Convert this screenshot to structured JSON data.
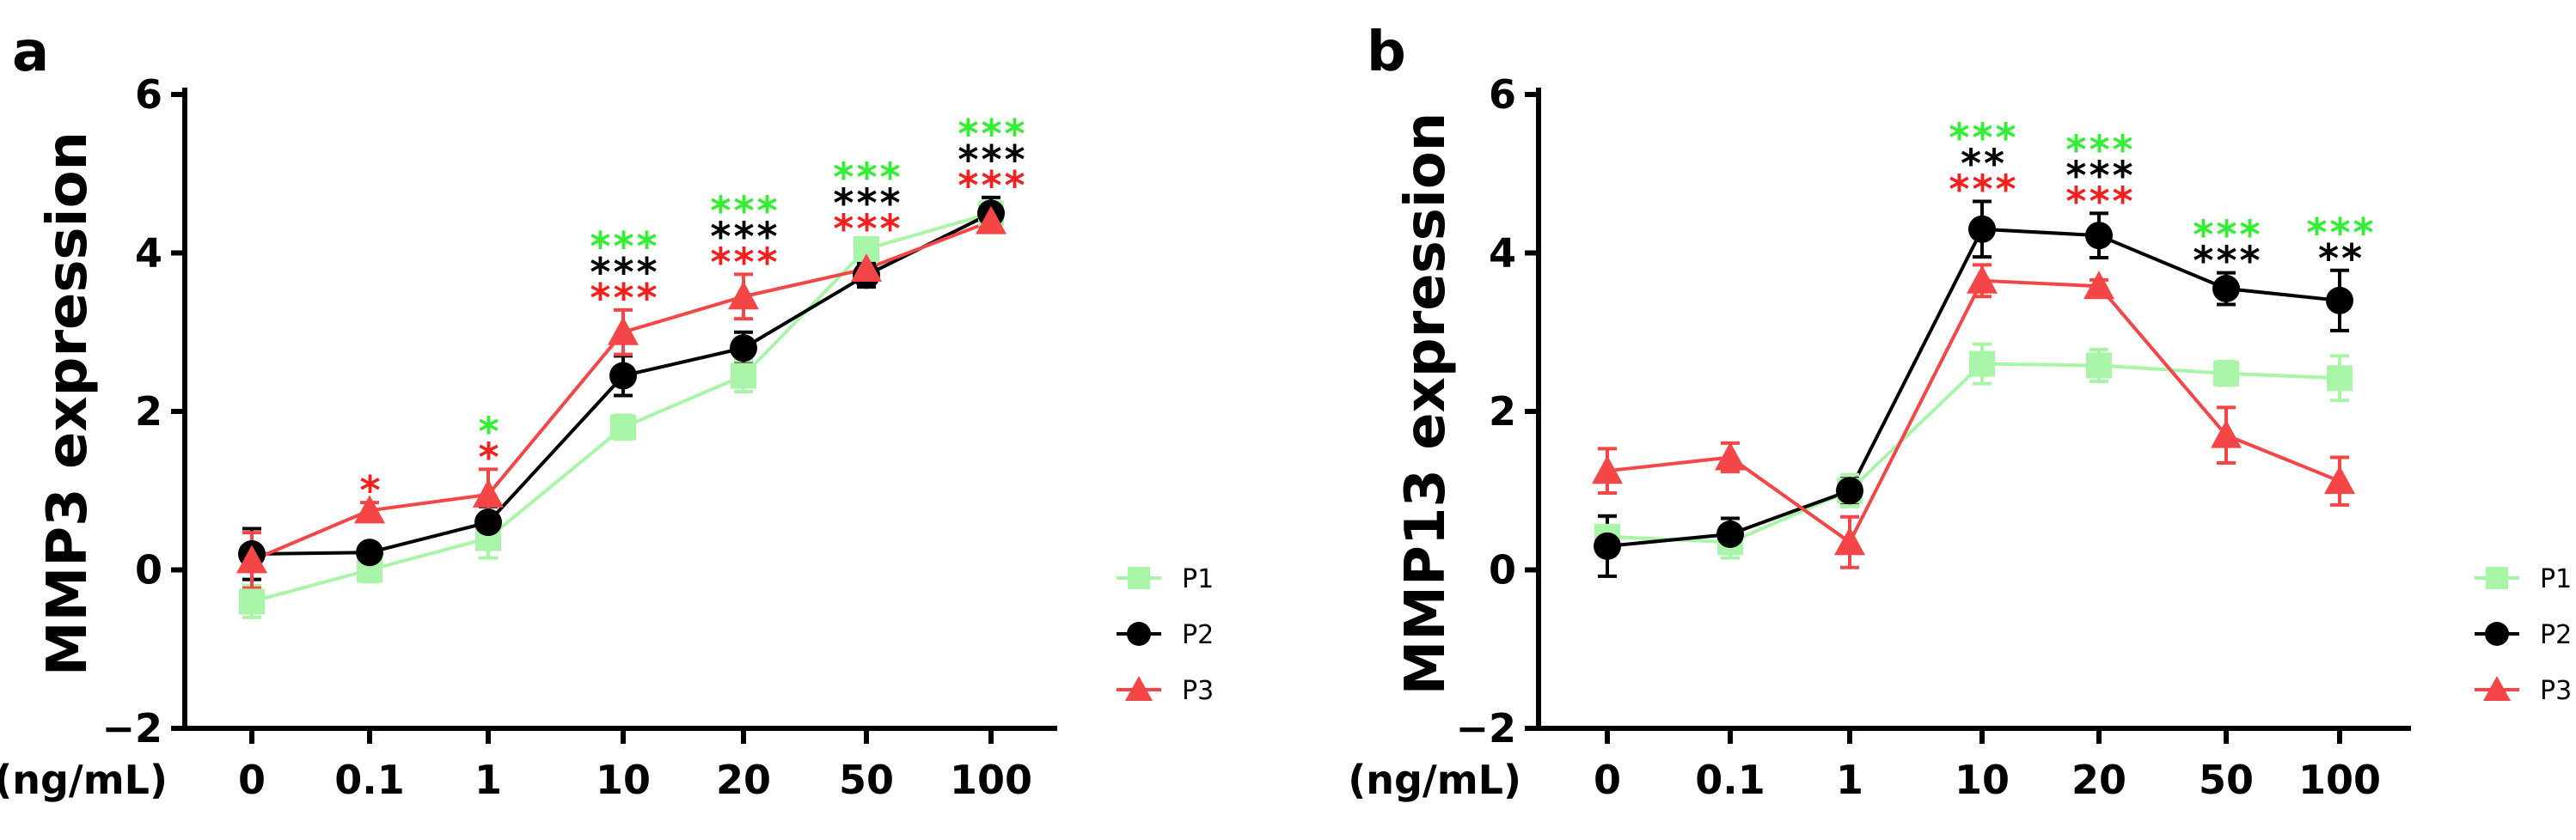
{
  "colors": {
    "P1": "#a8f5a8",
    "P2": "#000000",
    "P3": "#f44646",
    "star_green": "#33ee33",
    "star_black": "#000000",
    "star_red": "#f41f1f"
  },
  "chart_data": [
    {
      "type": "line",
      "panel": "a",
      "ylabel": "MMP3 expression",
      "xlabel": "(ng/mL)",
      "categories": [
        "0",
        "0.1",
        "1",
        "10",
        "20",
        "50",
        "100"
      ],
      "ylim": [
        -2,
        6
      ],
      "yticks": [
        "−2",
        "0",
        "2",
        "4",
        "6"
      ],
      "legend": [
        "P1",
        "P2",
        "P3"
      ],
      "legend_position": "right",
      "series": [
        {
          "name": "P1",
          "marker": "square",
          "values": [
            -0.4,
            0.0,
            0.4,
            1.8,
            2.45,
            4.05,
            4.5
          ],
          "errors": [
            0.2,
            0.15,
            0.25,
            0.15,
            0.2,
            0.1,
            0.15
          ]
        },
        {
          "name": "P2",
          "marker": "circle",
          "values": [
            0.2,
            0.22,
            0.6,
            2.45,
            2.8,
            3.72,
            4.5
          ],
          "errors": [
            0.32,
            0.08,
            0.2,
            0.25,
            0.2,
            0.15,
            0.2
          ]
        },
        {
          "name": "P3",
          "marker": "triangle",
          "values": [
            0.12,
            0.75,
            0.95,
            3.0,
            3.45,
            3.8,
            4.4
          ],
          "errors": [
            0.35,
            0.1,
            0.32,
            0.28,
            0.28,
            0.12,
            0.1
          ]
        }
      ],
      "annotations": [
        {
          "category": "0.1",
          "rows": [
            {
              "color": "red",
              "text": "*"
            }
          ]
        },
        {
          "category": "1",
          "rows": [
            {
              "color": "green",
              "text": "*"
            },
            {
              "color": "red",
              "text": "*"
            }
          ]
        },
        {
          "category": "10",
          "rows": [
            {
              "color": "green",
              "text": "***"
            },
            {
              "color": "black",
              "text": "***"
            },
            {
              "color": "red",
              "text": "***"
            }
          ]
        },
        {
          "category": "20",
          "rows": [
            {
              "color": "green",
              "text": "***"
            },
            {
              "color": "black",
              "text": "***"
            },
            {
              "color": "red",
              "text": "***"
            }
          ]
        },
        {
          "category": "50",
          "rows": [
            {
              "color": "green",
              "text": "***"
            },
            {
              "color": "black",
              "text": "***"
            },
            {
              "color": "red",
              "text": "***"
            }
          ]
        },
        {
          "category": "100",
          "rows": [
            {
              "color": "green",
              "text": "***"
            },
            {
              "color": "black",
              "text": "***"
            },
            {
              "color": "red",
              "text": "***"
            }
          ]
        }
      ]
    },
    {
      "type": "line",
      "panel": "b",
      "ylabel": "MMP13 expression",
      "xlabel": "(ng/mL)",
      "categories": [
        "0",
        "0.1",
        "1",
        "10",
        "20",
        "50",
        "100"
      ],
      "ylim": [
        -2,
        6
      ],
      "yticks": [
        "−2",
        "0",
        "2",
        "4",
        "6"
      ],
      "legend": [
        "P1",
        "P2",
        "P3"
      ],
      "legend_position": "right",
      "series": [
        {
          "name": "P1",
          "marker": "square",
          "values": [
            0.42,
            0.35,
            1.0,
            2.6,
            2.58,
            2.48,
            2.42
          ],
          "errors": [
            0.25,
            0.2,
            0.2,
            0.25,
            0.2,
            0.15,
            0.28
          ]
        },
        {
          "name": "P2",
          "marker": "circle",
          "values": [
            0.3,
            0.45,
            1.0,
            4.3,
            4.22,
            3.55,
            3.4
          ],
          "errors": [
            0.38,
            0.2,
            0.15,
            0.35,
            0.28,
            0.2,
            0.38
          ]
        },
        {
          "name": "P3",
          "marker": "triangle",
          "values": [
            1.25,
            1.42,
            0.35,
            3.65,
            3.58,
            1.7,
            1.12
          ],
          "errors": [
            0.28,
            0.18,
            0.32,
            0.2,
            0.08,
            0.35,
            0.3
          ]
        }
      ],
      "annotations": [
        {
          "category": "10",
          "rows": [
            {
              "color": "green",
              "text": "***"
            },
            {
              "color": "black",
              "text": "**"
            },
            {
              "color": "red",
              "text": "***"
            }
          ]
        },
        {
          "category": "20",
          "rows": [
            {
              "color": "green",
              "text": "***"
            },
            {
              "color": "black",
              "text": "***"
            },
            {
              "color": "red",
              "text": "***"
            }
          ]
        },
        {
          "category": "50",
          "rows": [
            {
              "color": "green",
              "text": "***"
            },
            {
              "color": "black",
              "text": "***"
            }
          ]
        },
        {
          "category": "100",
          "rows": [
            {
              "color": "green",
              "text": "***"
            },
            {
              "color": "black",
              "text": "**"
            }
          ]
        }
      ]
    }
  ]
}
